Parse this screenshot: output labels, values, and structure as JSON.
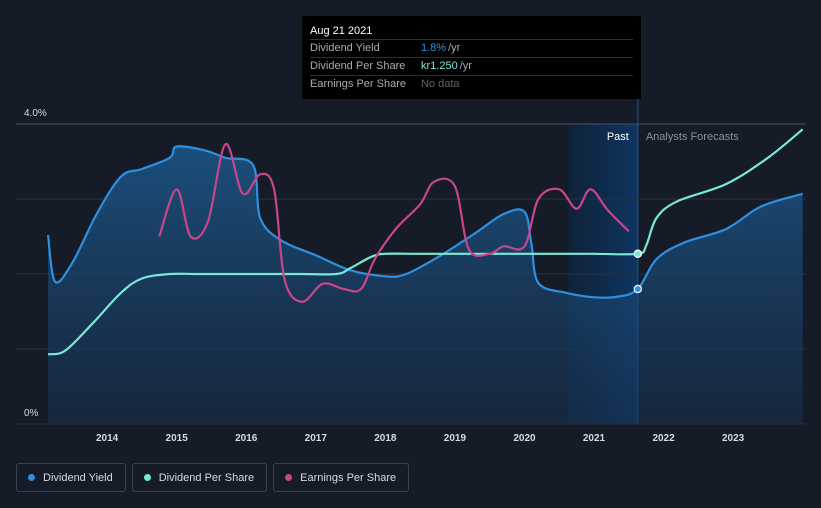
{
  "tooltip": {
    "date": "Aug 21 2021",
    "rows": [
      {
        "label": "Dividend Yield",
        "value": "1.8%",
        "unit": "/yr",
        "color": "#2f8fe0"
      },
      {
        "label": "Dividend Per Share",
        "value": "kr1.250",
        "unit": "/yr",
        "color": "#7ae8d6"
      },
      {
        "label": "Earnings Per Share",
        "value": "No data"
      }
    ]
  },
  "legend": [
    {
      "label": "Dividend Yield",
      "color": "#2f8fe0"
    },
    {
      "label": "Dividend Per Share",
      "color": "#7ae8d6"
    },
    {
      "label": "Earnings Per Share",
      "color": "#c8458a"
    }
  ],
  "chart_data": {
    "type": "line",
    "title": "",
    "xlabel": "",
    "ylabel": "",
    "xlim": [
      2013.1,
      2024.0
    ],
    "ylim": [
      0,
      4.0
    ],
    "y_tick_labels": [
      "4.0%",
      "0%"
    ],
    "x_tick_labels": [
      "2014",
      "2015",
      "2016",
      "2017",
      "2018",
      "2019",
      "2020",
      "2021",
      "2022",
      "2023"
    ],
    "x_ticks": [
      2014,
      2015,
      2016,
      2017,
      2018,
      2019,
      2020,
      2021,
      2022,
      2023
    ],
    "grid": true,
    "past_label": "Past",
    "forecast_label": "Analysts Forecasts",
    "past_shade_start": 2020.63,
    "forecast_start": 2021.63,
    "series": [
      {
        "name": "Dividend Yield",
        "color": "#2f8fe0",
        "area": true,
        "points": [
          [
            2013.15,
            2.52
          ],
          [
            2013.25,
            1.9
          ],
          [
            2013.5,
            2.15
          ],
          [
            2013.85,
            2.8
          ],
          [
            2014.2,
            3.3
          ],
          [
            2014.5,
            3.4
          ],
          [
            2014.9,
            3.55
          ],
          [
            2015.0,
            3.7
          ],
          [
            2015.4,
            3.65
          ],
          [
            2015.7,
            3.55
          ],
          [
            2016.1,
            3.45
          ],
          [
            2016.2,
            2.75
          ],
          [
            2016.5,
            2.45
          ],
          [
            2017.0,
            2.25
          ],
          [
            2017.5,
            2.05
          ],
          [
            2018.0,
            1.97
          ],
          [
            2018.3,
            2.0
          ],
          [
            2018.8,
            2.25
          ],
          [
            2019.3,
            2.55
          ],
          [
            2019.7,
            2.8
          ],
          [
            2020.0,
            2.83
          ],
          [
            2020.1,
            2.4
          ],
          [
            2020.2,
            1.88
          ],
          [
            2020.6,
            1.75
          ],
          [
            2021.0,
            1.69
          ],
          [
            2021.35,
            1.7
          ],
          [
            2021.63,
            1.8
          ],
          [
            2021.9,
            2.2
          ],
          [
            2022.3,
            2.42
          ],
          [
            2022.9,
            2.6
          ],
          [
            2023.4,
            2.9
          ],
          [
            2024.0,
            3.07
          ]
        ]
      },
      {
        "name": "Dividend Per Share",
        "color": "#7ae8d6",
        "area": false,
        "points": [
          [
            2013.15,
            0.93
          ],
          [
            2013.4,
            0.98
          ],
          [
            2013.8,
            1.35
          ],
          [
            2014.2,
            1.75
          ],
          [
            2014.5,
            1.94
          ],
          [
            2014.9,
            2.0
          ],
          [
            2015.3,
            2.0
          ],
          [
            2016.0,
            2.0
          ],
          [
            2016.8,
            2.0
          ],
          [
            2017.3,
            2.0
          ],
          [
            2017.5,
            2.08
          ],
          [
            2017.8,
            2.23
          ],
          [
            2018.0,
            2.27
          ],
          [
            2018.5,
            2.27
          ],
          [
            2019.5,
            2.27
          ],
          [
            2020.5,
            2.27
          ],
          [
            2021.0,
            2.27
          ],
          [
            2021.63,
            2.27
          ],
          [
            2021.75,
            2.38
          ],
          [
            2021.9,
            2.75
          ],
          [
            2022.2,
            2.97
          ],
          [
            2022.9,
            3.2
          ],
          [
            2023.5,
            3.55
          ],
          [
            2024.0,
            3.93
          ]
        ]
      },
      {
        "name": "Earnings Per Share",
        "color": "#c8458a",
        "area": false,
        "points": [
          [
            2014.75,
            2.5
          ],
          [
            2015.0,
            3.13
          ],
          [
            2015.2,
            2.5
          ],
          [
            2015.45,
            2.7
          ],
          [
            2015.7,
            3.73
          ],
          [
            2015.95,
            3.07
          ],
          [
            2016.2,
            3.33
          ],
          [
            2016.4,
            3.13
          ],
          [
            2016.55,
            1.93
          ],
          [
            2016.8,
            1.63
          ],
          [
            2017.1,
            1.87
          ],
          [
            2017.4,
            1.8
          ],
          [
            2017.65,
            1.8
          ],
          [
            2017.85,
            2.2
          ],
          [
            2018.15,
            2.6
          ],
          [
            2018.5,
            2.93
          ],
          [
            2018.7,
            3.23
          ],
          [
            2019.0,
            3.17
          ],
          [
            2019.2,
            2.33
          ],
          [
            2019.5,
            2.27
          ],
          [
            2019.7,
            2.37
          ],
          [
            2020.0,
            2.37
          ],
          [
            2020.2,
            3.0
          ],
          [
            2020.5,
            3.13
          ],
          [
            2020.75,
            2.87
          ],
          [
            2020.95,
            3.13
          ],
          [
            2021.2,
            2.85
          ],
          [
            2021.5,
            2.57
          ]
        ]
      }
    ],
    "markers": [
      {
        "series": "Dividend Yield",
        "x": 2021.63,
        "y": 1.8
      },
      {
        "series": "Dividend Per Share",
        "x": 2021.63,
        "y": 2.27
      }
    ]
  }
}
